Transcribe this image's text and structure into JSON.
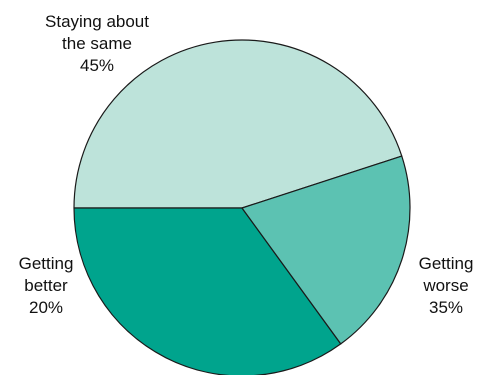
{
  "chart_data": {
    "type": "pie",
    "title": "",
    "slices": [
      {
        "label_lines": [
          "Staying about",
          "the same",
          "45%"
        ],
        "value": 45,
        "color": "#bde3da"
      },
      {
        "label_lines": [
          "Getting",
          "worse",
          "35%"
        ],
        "value": 35,
        "color": "#00a48d"
      },
      {
        "label_lines": [
          "Getting",
          "better",
          "20%"
        ],
        "value": 20,
        "color": "#5cc2b2"
      }
    ],
    "legend": "none"
  }
}
